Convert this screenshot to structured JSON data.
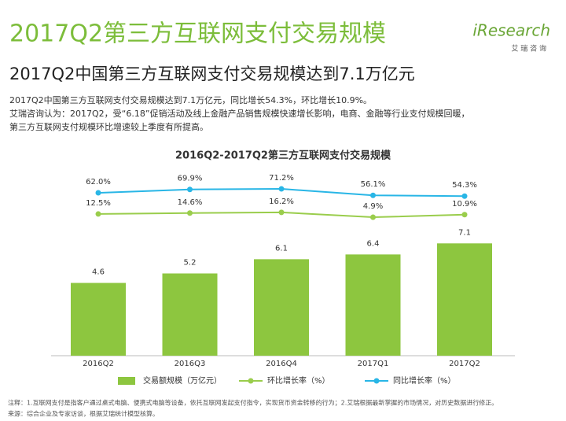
{
  "header": {
    "title": "2017Q2第三方互联网支付交易规模",
    "logo": "iResearch",
    "logo_sub": "艾 瑞 咨 询",
    "subtitle": "2017Q2中国第三方互联网支付交易规模达到7.1万亿元"
  },
  "summary": [
    "2017Q2中国第三方互联网支付交易规模达到7.1万亿元，同比增长54.3%，环比增长10.9%。",
    "艾瑞咨询认为：2017Q2，受“6.18”促销活动及线上金融产品销售规模快速增长影响，电商、金融等行业支付规模回暖，",
    "第三方互联网支付规模环比增速较上季度有所提高。"
  ],
  "chart_data": {
    "type": "bar",
    "title": "2016Q2-2017Q2第三方互联网支付交易规模",
    "categories": [
      "2016Q2",
      "2016Q3",
      "2016Q4",
      "2017Q1",
      "2017Q2"
    ],
    "series": [
      {
        "name": "交易额规模（万亿元）",
        "type": "bar",
        "color": "#8dc63f",
        "values": [
          4.6,
          5.2,
          6.1,
          6.4,
          7.1
        ]
      },
      {
        "name": "环比增长率（%）",
        "type": "line",
        "color": "#9acd4c",
        "values": [
          12.5,
          14.6,
          16.2,
          4.9,
          10.9
        ],
        "value_labels": [
          "12.5%",
          "14.6%",
          "16.2%",
          "4.9%",
          "10.9%"
        ]
      },
      {
        "name": "同比增长率（%）",
        "type": "line",
        "color": "#29b6e6",
        "values": [
          62.0,
          69.9,
          71.2,
          56.1,
          54.3
        ],
        "value_labels": [
          "62.0%",
          "69.9%",
          "71.2%",
          "56.1%",
          "54.3%"
        ]
      }
    ]
  },
  "notes": [
    "注释：1.互联网支付是指客户通过桌式电脑、便携式电脑等设备，依托互联网发起支付指令，实现货币资金转移的行为；2.艾瑞根据最新掌握的市场情况，对历史数据进行修正。",
    "来源：综合企业及专家访谈，根据艾瑞统计模型核算。"
  ]
}
